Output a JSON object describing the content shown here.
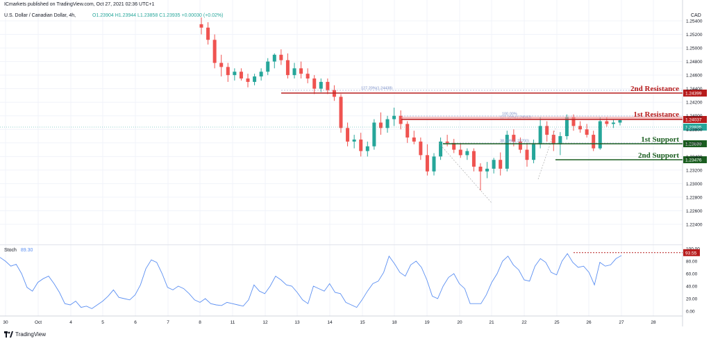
{
  "header": {
    "publisher": "ICmarkets published on TradingView.com, Oct 27, 2021 02:36 UTC+1",
    "symbol": "U.S. Dollar / Canadian Dollar, 4h,",
    "ohlc": {
      "o": "O1.23904",
      "h": "H1.23944",
      "l": "L1.23858",
      "c": "C1.23935",
      "chg": "+0.00030 (+0.02%)"
    },
    "currency": "CAD"
  },
  "colors": {
    "up": "#26a69a",
    "down": "#ef5350",
    "resistance": "#b71c1c",
    "support": "#1b5e20",
    "stoch": "#5b8ff2",
    "grid": "#f0f3fa"
  },
  "price_axis": {
    "min": 1.22,
    "max": 1.2547,
    "ticks": [
      "1.25400",
      "1.25200",
      "1.25000",
      "1.24800",
      "1.24600",
      "1.24400",
      "1.24200",
      "1.24000",
      "1.23800",
      "1.23600",
      "1.23400",
      "1.23200",
      "1.23000",
      "1.22800",
      "1.22600",
      "1.22400"
    ]
  },
  "levels": [
    {
      "label": "2nd Resistance",
      "value": 1.24399,
      "tag": "1.24399",
      "kind": "resistance"
    },
    {
      "label": "1st Resistance",
      "value": 1.24037,
      "tag": "1.24037",
      "kind": "resistance"
    },
    {
      "label": "1st Support",
      "value": 1.23699,
      "tag": "1.23699",
      "kind": "support"
    },
    {
      "label": "2nd Support",
      "value": 1.23476,
      "tag": "1.23476",
      "kind": "support"
    }
  ],
  "current_price": {
    "value": 1.23935,
    "tag": "1.23935"
  },
  "fib_labels": {
    "ext_127_top": "127.20%(1.24438)",
    "ret_100": "100.00%",
    "ext_127_mid": "127.20%(1.24043)",
    "ret_38": "38.20%(1.23700)"
  },
  "stoch": {
    "label": "Stoch",
    "value": "89.30",
    "tag": "93.55",
    "ticks": [
      "100.00",
      "80.00",
      "60.00",
      "40.00",
      "20.00",
      "0.00"
    ]
  },
  "time_axis": [
    "30",
    "Oct",
    "4",
    "5",
    "6",
    "7",
    "8",
    "11",
    "12",
    "13",
    "14",
    "15",
    "18",
    "19",
    "20",
    "21",
    "22",
    "25",
    "26",
    "27",
    "28"
  ],
  "footer": "TradingView",
  "chart_data": {
    "type": "candlestick",
    "title": "U.S. Dollar / Canadian Dollar, 4h",
    "ylim": [
      1.22,
      1.2547
    ],
    "candles": [
      [
        1.2535,
        1.2545,
        1.252,
        1.253
      ],
      [
        1.253,
        1.2538,
        1.2505,
        1.2512
      ],
      [
        1.2512,
        1.252,
        1.247,
        1.2478
      ],
      [
        1.2478,
        1.249,
        1.2458,
        1.2472
      ],
      [
        1.2472,
        1.2478,
        1.245,
        1.246
      ],
      [
        1.246,
        1.247,
        1.2452,
        1.2465
      ],
      [
        1.2465,
        1.247,
        1.2452,
        1.2455
      ],
      [
        1.2455,
        1.2462,
        1.2442,
        1.245
      ],
      [
        1.245,
        1.2462,
        1.2445,
        1.2458
      ],
      [
        1.2458,
        1.247,
        1.2452,
        1.2465
      ],
      [
        1.2465,
        1.2485,
        1.246,
        1.248
      ],
      [
        1.248,
        1.2492,
        1.247,
        1.249
      ],
      [
        1.249,
        1.2498,
        1.2475,
        1.2482
      ],
      [
        1.2482,
        1.2492,
        1.2455,
        1.246
      ],
      [
        1.246,
        1.2478,
        1.2455,
        1.247
      ],
      [
        1.247,
        1.248,
        1.2455,
        1.2462
      ],
      [
        1.2462,
        1.247,
        1.2448,
        1.2455
      ],
      [
        1.2455,
        1.246,
        1.2432,
        1.244
      ],
      [
        1.244,
        1.2455,
        1.2435,
        1.245
      ],
      [
        1.245,
        1.2455,
        1.2432,
        1.2438
      ],
      [
        1.2438,
        1.2445,
        1.2422,
        1.2428
      ],
      [
        1.2428,
        1.2432,
        1.2375,
        1.2382
      ],
      [
        1.2382,
        1.239,
        1.2355,
        1.2362
      ],
      [
        1.2362,
        1.2372,
        1.2352,
        1.2365
      ],
      [
        1.2365,
        1.2375,
        1.234,
        1.2348
      ],
      [
        1.2348,
        1.2362,
        1.234,
        1.2355
      ],
      [
        1.2355,
        1.2395,
        1.235,
        1.239
      ],
      [
        1.239,
        1.2405,
        1.2372,
        1.2382
      ],
      [
        1.2382,
        1.24,
        1.2375,
        1.2395
      ],
      [
        1.2395,
        1.2412,
        1.2385,
        1.24
      ],
      [
        1.24,
        1.2408,
        1.238,
        1.2388
      ],
      [
        1.2388,
        1.2392,
        1.236,
        1.2368
      ],
      [
        1.2368,
        1.2378,
        1.2358,
        1.2362
      ],
      [
        1.2362,
        1.2368,
        1.2335,
        1.2342
      ],
      [
        1.2342,
        1.2358,
        1.2312,
        1.2318
      ],
      [
        1.2318,
        1.2345,
        1.2312,
        1.234
      ],
      [
        1.234,
        1.2368,
        1.2335,
        1.2362
      ],
      [
        1.2362,
        1.2372,
        1.2355,
        1.236
      ],
      [
        1.236,
        1.2366,
        1.2345,
        1.235
      ],
      [
        1.235,
        1.236,
        1.2338,
        1.2342
      ],
      [
        1.2342,
        1.2352,
        1.2335,
        1.2348
      ],
      [
        1.2348,
        1.2352,
        1.2318,
        1.2325
      ],
      [
        1.2325,
        1.233,
        1.229,
        1.2318
      ],
      [
        1.2318,
        1.2332,
        1.2308,
        1.2322
      ],
      [
        1.2322,
        1.2338,
        1.2315,
        1.2335
      ],
      [
        1.2335,
        1.2346,
        1.2312,
        1.2322
      ],
      [
        1.2322,
        1.2378,
        1.2318,
        1.2372
      ],
      [
        1.2372,
        1.238,
        1.2355,
        1.2362
      ],
      [
        1.2362,
        1.2368,
        1.2345,
        1.235
      ],
      [
        1.235,
        1.236,
        1.2325,
        1.2335
      ],
      [
        1.2335,
        1.2365,
        1.233,
        1.2358
      ],
      [
        1.2358,
        1.2398,
        1.2352,
        1.2385
      ],
      [
        1.2385,
        1.2392,
        1.2362,
        1.2372
      ],
      [
        1.2372,
        1.2378,
        1.2348,
        1.2358
      ],
      [
        1.2358,
        1.2376,
        1.2342,
        1.237
      ],
      [
        1.237,
        1.2402,
        1.2365,
        1.2398
      ],
      [
        1.2398,
        1.2402,
        1.2378,
        1.2385
      ],
      [
        1.2385,
        1.2392,
        1.2375,
        1.238
      ],
      [
        1.238,
        1.2388,
        1.2368,
        1.2372
      ],
      [
        1.2372,
        1.2378,
        1.2348,
        1.2352
      ],
      [
        1.2352,
        1.2398,
        1.235,
        1.2392
      ],
      [
        1.2392,
        1.2398,
        1.2384,
        1.2388
      ],
      [
        1.2388,
        1.2394,
        1.2382,
        1.239
      ],
      [
        1.239,
        1.23944,
        1.23858,
        1.23935
      ]
    ],
    "stoch_values": [
      86,
      80,
      72,
      75,
      60,
      38,
      32,
      46,
      52,
      56,
      44,
      30,
      12,
      10,
      16,
      6,
      8,
      4,
      10,
      16,
      24,
      34,
      22,
      20,
      18,
      26,
      42,
      68,
      82,
      78,
      60,
      38,
      34,
      40,
      36,
      28,
      18,
      14,
      20,
      12,
      10,
      9,
      14,
      12,
      10,
      8,
      18,
      42,
      32,
      28,
      40,
      56,
      50,
      42,
      40,
      30,
      18,
      12,
      40,
      36,
      32,
      44,
      30,
      28,
      14,
      10,
      6,
      18,
      32,
      44,
      48,
      62,
      88,
      76,
      62,
      56,
      74,
      80,
      70,
      50,
      24,
      20,
      40,
      54,
      60,
      44,
      36,
      12,
      12,
      12,
      26,
      46,
      60,
      80,
      88,
      74,
      66,
      50,
      48,
      72,
      84,
      78,
      62,
      58,
      80,
      92,
      78,
      70,
      72,
      62,
      42,
      78,
      72,
      74,
      84,
      89
    ]
  }
}
